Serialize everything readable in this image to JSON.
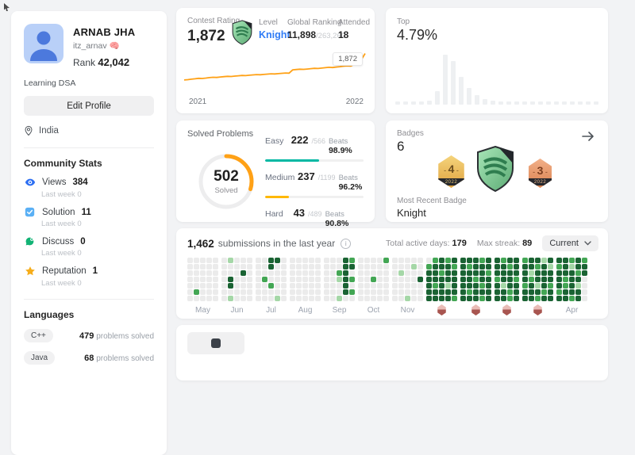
{
  "profile": {
    "name": "ARNAB JHA",
    "username": "itz_arnav",
    "username_emoji": "🧠",
    "rank_label": "Rank",
    "rank_value": "42,042",
    "tagline": "Learning DSA",
    "edit_button": "Edit Profile",
    "location": "India"
  },
  "community": {
    "title": "Community Stats",
    "sub_label": "Last week",
    "items": [
      {
        "label": "Views",
        "value": "384",
        "sub_value": "0",
        "icon": "eye-icon",
        "color": "#2d6ff2"
      },
      {
        "label": "Solution",
        "value": "11",
        "sub_value": "0",
        "icon": "check-square-icon",
        "color": "#5ab0f5"
      },
      {
        "label": "Discuss",
        "value": "0",
        "sub_value": "0",
        "icon": "chat-icon",
        "color": "#12b375"
      },
      {
        "label": "Reputation",
        "value": "1",
        "sub_value": "0",
        "icon": "star-icon",
        "color": "#f6ad1b"
      }
    ]
  },
  "languages": {
    "title": "Languages",
    "suffix": "problems solved",
    "items": [
      {
        "name": "C++",
        "solved": "479"
      },
      {
        "name": "Java",
        "solved": "68"
      }
    ]
  },
  "contest": {
    "rating_label": "Contest Rating",
    "rating_value": "1,872",
    "level_label": "Level",
    "level_value": "Knight",
    "level_color": "#2e7bf6",
    "ranking_label": "Global Ranking",
    "ranking_value": "11,898",
    "ranking_total": "/263,260",
    "attended_label": "Attended",
    "attended_value": "18",
    "tooltip_value": "1,872",
    "axis_start": "2021",
    "axis_end": "2022",
    "line_color": "#ffa116"
  },
  "top_percent": {
    "label": "Top",
    "value": "4.79%"
  },
  "solved": {
    "title": "Solved Problems",
    "total_value": "502",
    "total_label": "Solved",
    "beats_label": "Beats",
    "ring_color": "#ffa116",
    "rows": [
      {
        "label": "Easy",
        "count": "222",
        "total": "/566",
        "beats": "98.9%",
        "color": "#00b8a3",
        "fill_pct": 55
      },
      {
        "label": "Medium",
        "count": "237",
        "total": "/1199",
        "beats": "96.2%",
        "color": "#ffb800",
        "fill_pct": 24
      },
      {
        "label": "Hard",
        "count": "43",
        "total": "/489",
        "beats": "90.8%",
        "color": "#ef4743",
        "fill_pct": 10
      }
    ]
  },
  "badges": {
    "title": "Badges",
    "count": "6",
    "recent_label": "Most Recent Badge",
    "recent_value": "Knight",
    "medals": [
      {
        "number": "4",
        "year": "2022",
        "style": "gold"
      },
      {
        "style": "knight-shield"
      },
      {
        "number": "3",
        "year": "2022",
        "style": "bronze"
      }
    ]
  },
  "submissions": {
    "count": "1,462",
    "title_suffix": "submissions in the last year",
    "active_label": "Total active days:",
    "active_value": "179",
    "streak_label": "Max streak:",
    "streak_value": "89",
    "range_selector": "Current"
  },
  "chart_data": [
    {
      "type": "line",
      "title": "Contest rating over time",
      "color": "#ffa116",
      "x_labels": [
        "2021",
        "2022"
      ],
      "ylim": [
        1480,
        1900
      ],
      "final_label": "1,872",
      "values": [
        1503,
        1508,
        1514,
        1520,
        1526,
        1524,
        1530,
        1536,
        1541,
        1539,
        1545,
        1550,
        1554,
        1552,
        1557,
        1562,
        1566,
        1564,
        1569,
        1574,
        1578,
        1576,
        1581,
        1585,
        1589,
        1587,
        1592,
        1596,
        1600,
        1598,
        1645,
        1649,
        1653,
        1651,
        1656,
        1661,
        1666,
        1663,
        1669,
        1675,
        1680,
        1677,
        1683,
        1689,
        1695,
        1700,
        1697,
        1720,
        1740,
        1790,
        1872
      ]
    },
    {
      "type": "bar",
      "title": "Rating distribution",
      "color": "#eef0f2",
      "values": [
        4,
        4,
        4,
        4,
        5,
        17,
        63,
        55,
        35,
        21,
        12,
        7,
        5,
        4,
        4,
        4,
        4,
        4,
        4,
        4,
        4,
        4,
        4,
        4,
        4,
        4
      ]
    },
    {
      "type": "heatmap",
      "title": "Submission calendar",
      "palette": [
        "#ebebeb",
        "#a5d7a7",
        "#43a654",
        "#1a6333"
      ],
      "months": [
        {
          "label": "May",
          "cols": [
            "0000000",
            "0000020",
            "0000000",
            "0000000",
            "0000000"
          ]
        },
        {
          "label": "Jun",
          "cols": [
            "0000000",
            "1003301",
            "0000000",
            "0030000",
            "0000000"
          ]
        },
        {
          "label": "Jul",
          "cols": [
            "0000000",
            "0002000",
            "3300200",
            "3000001",
            "0000000"
          ]
        },
        {
          "label": "Aug",
          "cols": [
            "0000000",
            "0000000",
            "0000000",
            "0000000",
            "0000000"
          ]
        },
        {
          "label": "Sep",
          "cols": [
            "0000000",
            "0000000",
            "0021001",
            "3333330",
            "2302020"
          ]
        },
        {
          "label": "Oct",
          "cols": [
            "0000000",
            "0000000",
            "0002000",
            "0000000",
            "2000000"
          ]
        },
        {
          "label": "Nov",
          "cols": [
            "0000000",
            "0010000",
            "0000001",
            "0100000",
            "0003000"
          ]
        },
        {
          "label": "Dec",
          "badge": true,
          "cols": [
            "0233333",
            "2333233",
            "3323333",
            "2333133",
            "3233332"
          ]
        },
        {
          "label": "Jan",
          "badge": true,
          "cols": [
            "3333333",
            "3233323",
            "3332333",
            "2333232",
            "3323333"
          ]
        },
        {
          "label": "Feb",
          "badge": true,
          "cols": [
            "3332333",
            "2333133",
            "3233322",
            "3332333"
          ]
        },
        {
          "label": "Mar",
          "badge": true,
          "cols": [
            "2333233",
            "3312333",
            "3233132",
            "1333323",
            "3133233"
          ]
        },
        {
          "label": "Apr",
          "cols": [
            "3233323",
            "3332233",
            "2133332",
            "3323133",
            "2330000"
          ]
        }
      ]
    }
  ]
}
